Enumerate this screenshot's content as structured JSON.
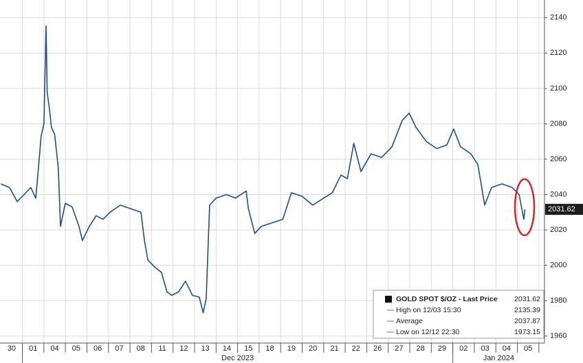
{
  "chart_data": {
    "type": "line",
    "x": [
      -0.5,
      -0.1,
      0.26,
      0.58,
      0.89,
      1.12,
      1.21,
      1.37,
      1.5,
      1.6,
      1.65,
      1.76,
      1.85,
      2.0,
      2.17,
      2.27,
      2.49,
      2.81,
      3.13,
      3.29,
      3.61,
      3.93,
      4.25,
      4.57,
      5.05,
      5.53,
      6.01,
      6.17,
      6.33,
      6.65,
      6.96,
      7.22,
      7.44,
      7.76,
      8.08,
      8.4,
      8.72,
      8.9,
      9.04,
      9.2,
      9.5,
      9.98,
      10.4,
      10.9,
      11.0,
      11.3,
      11.6,
      12.1,
      12.6,
      13.0,
      13.5,
      13.99,
      14.5,
      14.9,
      15.3,
      15.6,
      15.9,
      16.23,
      16.7,
      17.19,
      17.67,
      18.15,
      18.47,
      18.79,
      19.27,
      19.75,
      20.22,
      20.54,
      20.86,
      21.34,
      21.66,
      21.98,
      22.3,
      22.78,
      23.26,
      23.58,
      23.8,
      23.85
    ],
    "series": [
      {
        "color": "#1b4f8c",
        "values": [
          2046,
          2044,
          2036,
          2040,
          2044,
          2038,
          2050,
          2073,
          2080,
          2135.39,
          2098,
          2088,
          2078,
          2074,
          2055,
          2022,
          2035,
          2033,
          2022,
          2014,
          2022,
          2028,
          2026,
          2030,
          2034,
          2032,
          2030,
          2014,
          2003,
          1999,
          1996,
          1985,
          1983,
          1985,
          1991,
          1983,
          1982,
          1973.15,
          1981,
          2034,
          2038,
          2040,
          2038,
          2042,
          2032,
          2018,
          2022,
          2024,
          2026,
          2041,
          2039,
          2034,
          2038,
          2041,
          2051,
          2049,
          2069,
          2053,
          2063,
          2061,
          2067,
          2082,
          2086,
          2078,
          2070,
          2066,
          2068,
          2077,
          2067,
          2063,
          2057,
          2034,
          2044,
          2046,
          2044,
          2040,
          2026,
          2031.62
        ]
      }
    ],
    "xlim": [
      -0.54,
      24.76
    ],
    "xticks": [
      {
        "value": 0,
        "label": "30"
      },
      {
        "value": 1,
        "label": "01"
      },
      {
        "value": 2,
        "label": "04"
      },
      {
        "value": 3,
        "label": "05"
      },
      {
        "value": 4,
        "label": "06"
      },
      {
        "value": 5,
        "label": "07"
      },
      {
        "value": 6,
        "label": "08"
      },
      {
        "value": 7,
        "label": "11"
      },
      {
        "value": 8,
        "label": "12"
      },
      {
        "value": 9,
        "label": "13"
      },
      {
        "value": 10,
        "label": "14"
      },
      {
        "value": 11,
        "label": "15"
      },
      {
        "value": 12,
        "label": "18"
      },
      {
        "value": 13,
        "label": "19"
      },
      {
        "value": 14,
        "label": "20"
      },
      {
        "value": 15,
        "label": "21"
      },
      {
        "value": 16,
        "label": "22"
      },
      {
        "value": 17,
        "label": "26"
      },
      {
        "value": 18,
        "label": "27"
      },
      {
        "value": 19,
        "label": "28"
      },
      {
        "value": 20,
        "label": "29"
      },
      {
        "value": 21,
        "label": "02"
      },
      {
        "value": 22,
        "label": "03"
      },
      {
        "value": 23,
        "label": "04"
      },
      {
        "value": 24,
        "label": "05"
      }
    ],
    "x_group_labels": [
      "Dec 2023",
      "Jan 2024"
    ],
    "ylim": [
      1956,
      2150
    ],
    "yticks": [
      1960,
      1980,
      2000,
      2020,
      2040,
      2060,
      2080,
      2100,
      2120,
      2140
    ],
    "grid": true,
    "legend": [
      {
        "label": "GOLD SPOT $/OZ - Last Price",
        "value": 2031.62
      },
      {
        "label": "High on 12/03 15:30",
        "value": 2135.39
      },
      {
        "label": "Average",
        "value": 2037.87
      },
      {
        "label": "Low on 12/12 22:30",
        "value": 1973.15
      }
    ]
  }
}
